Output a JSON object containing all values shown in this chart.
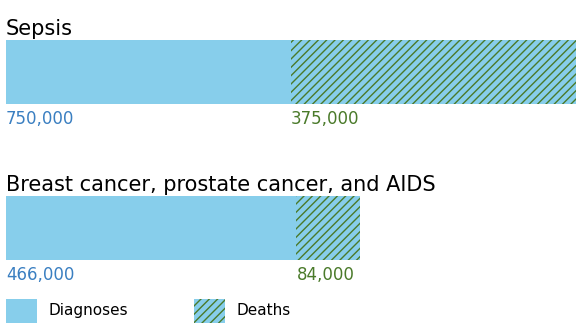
{
  "title1": "Sepsis",
  "title2": "Breast cancer, prostate cancer, and AIDS",
  "sepsis_diagnoses": 750000,
  "sepsis_deaths": 375000,
  "other_diagnoses": 466000,
  "other_deaths": 84000,
  "max_value": 750000,
  "diagnoses_color": "#87CEEB",
  "deaths_hatch_color": "#4a7a2a",
  "title_color": "#000000",
  "label_color_blue": "#3a7fc1",
  "label_color_green": "#4a7a2a",
  "title_fontsize": 15,
  "label_fontsize": 12,
  "legend_fontsize": 11
}
